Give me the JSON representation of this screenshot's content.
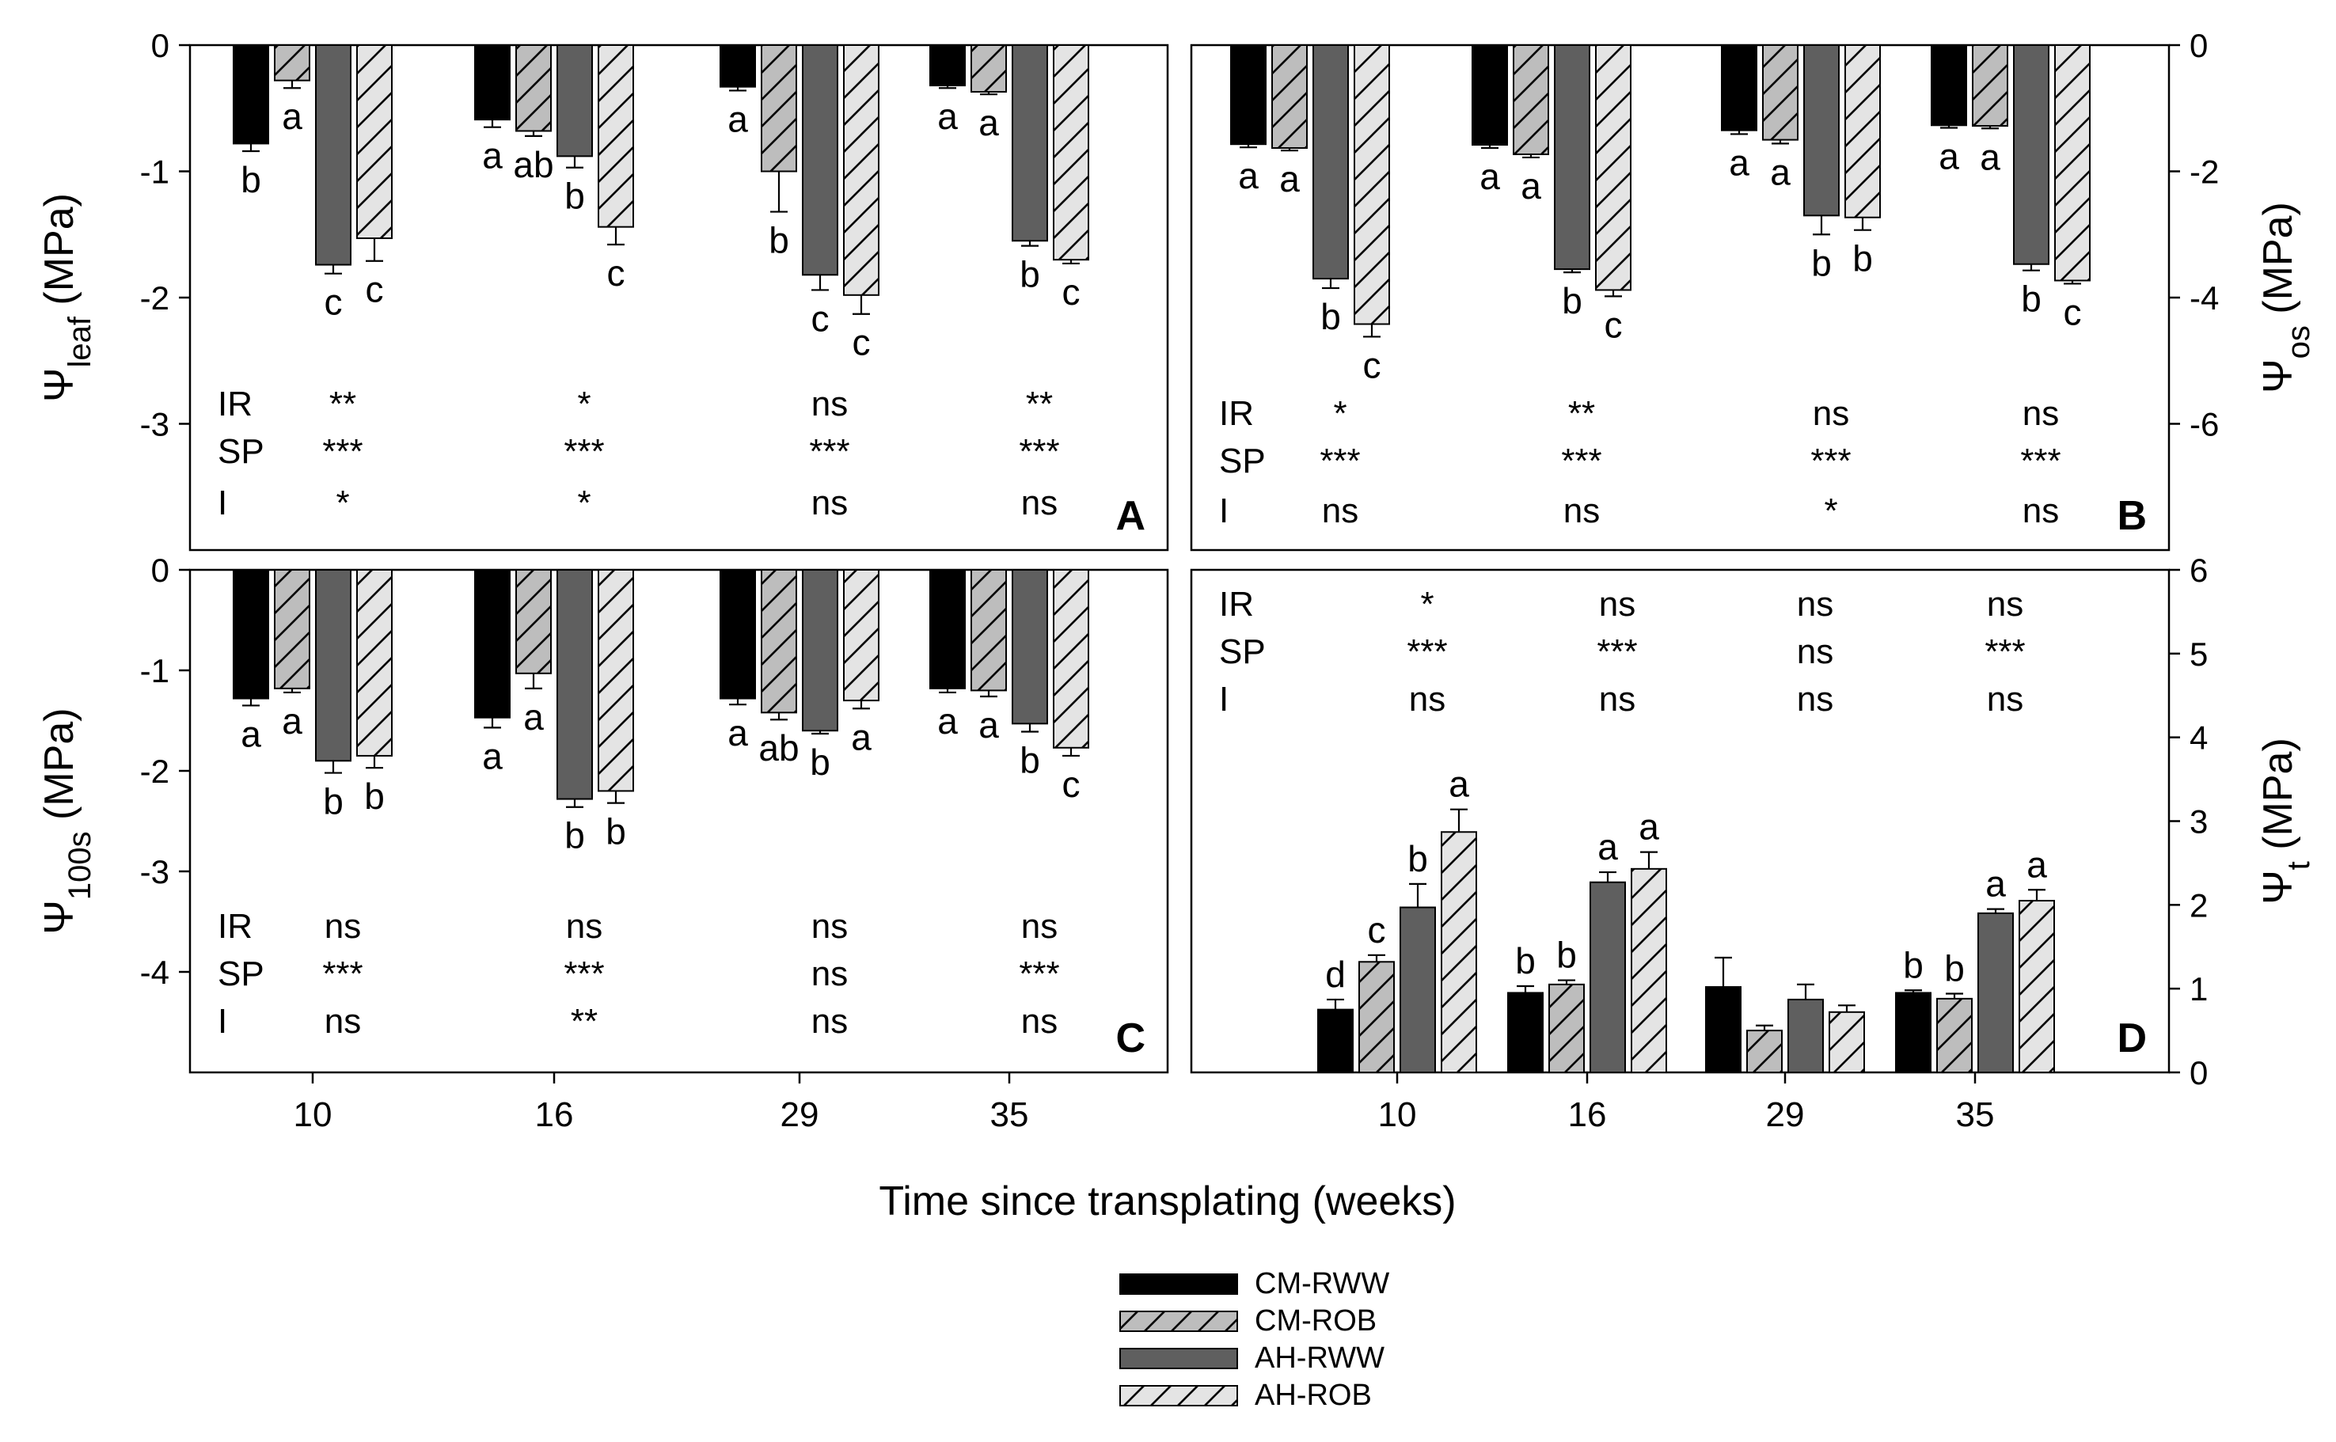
{
  "xlabel": "Time since transplating (weeks)",
  "colors": {
    "axis": "#000000",
    "CM-RWW": "#000000",
    "CM-ROB": "#bdbdbd",
    "AH-RWW": "#5f5f5f",
    "AH-ROB": "#e4e4e4"
  },
  "legend": [
    {
      "name": "CM-RWW",
      "hatch": false
    },
    {
      "name": "CM-ROB",
      "hatch": true
    },
    {
      "name": "AH-RWW",
      "hatch": false
    },
    {
      "name": "AH-ROB",
      "hatch": true
    }
  ],
  "chart_data": [
    {
      "type": "bar",
      "panel": "A",
      "ylabel_main": "Ψ",
      "ylabel_sub": "leaf",
      "ylabel_unit": " (MPa)",
      "ylim": [
        -4,
        0
      ],
      "yticks": [
        0,
        -1,
        -2,
        -3
      ],
      "ytick_labels": [
        "0",
        "-1",
        "-2",
        "-3"
      ],
      "categories": [
        "10",
        "16",
        "29",
        "35"
      ],
      "series": [
        {
          "name": "CM-RWW",
          "values": [
            -0.78,
            -0.59,
            -0.33,
            -0.32
          ],
          "err": [
            0.06,
            0.06,
            0.03,
            0.02
          ],
          "letters": [
            "b",
            "a",
            "a",
            "a"
          ]
        },
        {
          "name": "CM-ROB",
          "values": [
            -0.28,
            -0.68,
            -1.0,
            -0.37
          ],
          "err": [
            0.06,
            0.04,
            0.32,
            0.02
          ],
          "letters": [
            "a",
            "ab",
            "b",
            "a"
          ]
        },
        {
          "name": "AH-RWW",
          "values": [
            -1.74,
            -0.88,
            -1.82,
            -1.55
          ],
          "err": [
            0.07,
            0.09,
            0.12,
            0.04
          ],
          "letters": [
            "c",
            "b",
            "c",
            "b"
          ]
        },
        {
          "name": "AH-ROB",
          "values": [
            -1.53,
            -1.44,
            -1.98,
            -1.7
          ],
          "err": [
            0.18,
            0.14,
            0.15,
            0.03
          ],
          "letters": [
            "c",
            "c",
            "c",
            "c"
          ]
        }
      ],
      "stats": [
        {
          "label": "IR",
          "values": [
            "**",
            "*",
            "ns",
            "**"
          ]
        },
        {
          "label": "SP",
          "values": [
            "***",
            "***",
            "***",
            "***"
          ]
        },
        {
          "label": "I",
          "values": [
            "*",
            "*",
            "ns",
            "ns"
          ]
        }
      ]
    },
    {
      "type": "bar",
      "panel": "B",
      "ylabel_main": "Ψ",
      "ylabel_sub": "os",
      "ylabel_unit": " (MPa)",
      "ylim": [
        -8,
        0
      ],
      "yticks": [
        0,
        -2,
        -4,
        -6
      ],
      "ytick_labels": [
        "0",
        "-2",
        "-4",
        "-6"
      ],
      "categories": [
        "10",
        "16",
        "29",
        "35"
      ],
      "series": [
        {
          "name": "CM-RWW",
          "values": [
            -1.57,
            -1.58,
            -1.35,
            -1.27
          ],
          "err": [
            0.05,
            0.05,
            0.06,
            0.04
          ],
          "letters": [
            "a",
            "a",
            "a",
            "a"
          ]
        },
        {
          "name": "CM-ROB",
          "values": [
            -1.63,
            -1.73,
            -1.5,
            -1.28
          ],
          "err": [
            0.04,
            0.05,
            0.06,
            0.04
          ],
          "letters": [
            "a",
            "a",
            "a",
            "a"
          ]
        },
        {
          "name": "AH-RWW",
          "values": [
            -3.7,
            -3.55,
            -2.7,
            -3.47
          ],
          "err": [
            0.15,
            0.05,
            0.3,
            0.1
          ],
          "letters": [
            "b",
            "b",
            "b",
            "b"
          ]
        },
        {
          "name": "AH-ROB",
          "values": [
            -4.42,
            -3.88,
            -2.73,
            -3.73
          ],
          "err": [
            0.2,
            0.1,
            0.2,
            0.05
          ],
          "letters": [
            "c",
            "c",
            "b",
            "c"
          ]
        }
      ],
      "stats": [
        {
          "label": "IR",
          "values": [
            "*",
            "**",
            "ns",
            "ns"
          ]
        },
        {
          "label": "SP",
          "values": [
            "***",
            "***",
            "***",
            "***"
          ]
        },
        {
          "label": "I",
          "values": [
            "ns",
            "ns",
            "*",
            "ns"
          ]
        }
      ]
    },
    {
      "type": "bar",
      "panel": "C",
      "ylabel_main": "Ψ",
      "ylabel_sub": "100s",
      "ylabel_unit": " (MPa)",
      "ylim": [
        -5,
        0
      ],
      "yticks": [
        0,
        -1,
        -2,
        -3,
        -4
      ],
      "ytick_labels": [
        "0",
        "-1",
        "-2",
        "-3",
        "-4"
      ],
      "categories": [
        "10",
        "16",
        "29",
        "35"
      ],
      "series": [
        {
          "name": "CM-RWW",
          "values": [
            -1.28,
            -1.47,
            -1.28,
            -1.18
          ],
          "err": [
            0.07,
            0.1,
            0.06,
            0.04
          ],
          "letters": [
            "a",
            "a",
            "a",
            "a"
          ]
        },
        {
          "name": "CM-ROB",
          "values": [
            -1.18,
            -1.03,
            -1.42,
            -1.2
          ],
          "err": [
            0.04,
            0.15,
            0.07,
            0.06
          ],
          "letters": [
            "a",
            "a",
            "ab",
            "a"
          ]
        },
        {
          "name": "AH-RWW",
          "values": [
            -1.9,
            -2.28,
            -1.6,
            -1.53
          ],
          "err": [
            0.12,
            0.08,
            0.03,
            0.08
          ],
          "letters": [
            "b",
            "b",
            "b",
            "b"
          ]
        },
        {
          "name": "AH-ROB",
          "values": [
            -1.85,
            -2.2,
            -1.3,
            -1.77
          ],
          "err": [
            0.12,
            0.12,
            0.08,
            0.08
          ],
          "letters": [
            "b",
            "b",
            "a",
            "c"
          ]
        }
      ],
      "stats": [
        {
          "label": "IR",
          "values": [
            "ns",
            "ns",
            "ns",
            "ns"
          ]
        },
        {
          "label": "SP",
          "values": [
            "***",
            "***",
            "ns",
            "***"
          ]
        },
        {
          "label": "I",
          "values": [
            "ns",
            "**",
            "ns",
            "ns"
          ]
        }
      ]
    },
    {
      "type": "bar",
      "panel": "D",
      "ylabel_main": "Ψ",
      "ylabel_sub": "t",
      "ylabel_unit": " (MPa)",
      "ylim": [
        0,
        6
      ],
      "yticks": [
        0,
        1,
        2,
        3,
        4,
        5,
        6
      ],
      "ytick_labels": [
        "0",
        "1",
        "2",
        "3",
        "4",
        "5",
        "6"
      ],
      "categories": [
        "10",
        "16",
        "29",
        "35"
      ],
      "series": [
        {
          "name": "CM-RWW",
          "values": [
            0.75,
            0.95,
            1.02,
            0.95
          ],
          "err": [
            0.12,
            0.08,
            0.35,
            0.03
          ],
          "letters": [
            "d",
            "b",
            "",
            "b"
          ]
        },
        {
          "name": "CM-ROB",
          "values": [
            1.32,
            1.05,
            0.5,
            0.88
          ],
          "err": [
            0.08,
            0.05,
            0.06,
            0.06
          ],
          "letters": [
            "c",
            "b",
            "",
            "b"
          ]
        },
        {
          "name": "AH-RWW",
          "values": [
            1.97,
            2.27,
            0.87,
            1.9
          ],
          "err": [
            0.28,
            0.12,
            0.18,
            0.05
          ],
          "letters": [
            "b",
            "a",
            "",
            "a"
          ]
        },
        {
          "name": "AH-ROB",
          "values": [
            2.87,
            2.43,
            0.72,
            2.05
          ],
          "err": [
            0.27,
            0.2,
            0.08,
            0.13
          ],
          "letters": [
            "a",
            "a",
            "",
            "a"
          ]
        }
      ],
      "stats": [
        {
          "label": "IR",
          "values": [
            "*",
            "ns",
            "ns",
            "ns"
          ]
        },
        {
          "label": "SP",
          "values": [
            "***",
            "***",
            "ns",
            "***"
          ]
        },
        {
          "label": "I",
          "values": [
            "ns",
            "ns",
            "ns",
            "ns"
          ]
        }
      ]
    }
  ]
}
